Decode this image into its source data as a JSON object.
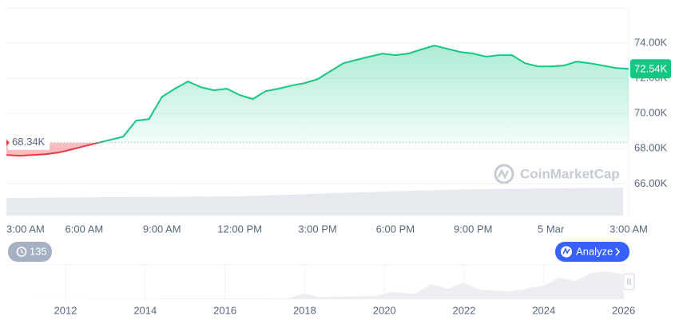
{
  "chart_data": {
    "type": "line",
    "x": [
      0,
      0.5,
      1,
      1.5,
      2,
      2.5,
      3,
      3.5,
      4,
      4.5,
      5,
      5.5,
      6,
      6.5,
      7,
      7.5,
      8,
      8.5,
      9,
      9.5,
      10,
      10.5,
      11,
      11.5,
      12,
      12.5,
      13,
      13.5,
      14,
      14.5,
      15,
      15.5,
      16,
      16.5,
      17,
      17.5,
      18,
      18.5,
      19,
      19.5,
      20,
      20.5,
      21,
      21.5,
      22,
      22.5,
      23,
      23.5,
      24
    ],
    "values": [
      67.64,
      67.59,
      67.64,
      67.68,
      67.77,
      67.95,
      68.14,
      68.32,
      68.5,
      68.68,
      69.59,
      69.68,
      70.95,
      71.41,
      71.82,
      71.5,
      71.32,
      71.41,
      71.05,
      70.82,
      71.27,
      71.41,
      71.59,
      71.73,
      71.95,
      72.41,
      72.86,
      73.05,
      73.23,
      73.41,
      73.32,
      73.41,
      73.64,
      73.86,
      73.68,
      73.5,
      73.41,
      73.23,
      73.32,
      73.32,
      72.86,
      72.68,
      72.68,
      72.73,
      72.95,
      72.86,
      72.73,
      72.59,
      72.54
    ],
    "up_color": "#16c784",
    "down_color": "#ea3943",
    "baseline": 68.34,
    "baseline_label": "68.34K",
    "current_price_label": "72.54K",
    "xlim": [
      0,
      24
    ],
    "xticks": [
      {
        "value": 0,
        "label": "3:00 AM"
      },
      {
        "value": 3,
        "label": "6:00 AM"
      },
      {
        "value": 6,
        "label": "9:00 AM"
      },
      {
        "value": 9,
        "label": "12:00 PM"
      },
      {
        "value": 12,
        "label": "3:00 PM"
      },
      {
        "value": 15,
        "label": "6:00 PM"
      },
      {
        "value": 18,
        "label": "9:00 PM"
      },
      {
        "value": 21,
        "label": "5 Mar"
      },
      {
        "value": 24,
        "label": "3:00 AM"
      }
    ],
    "ylim": [
      64.2,
      76
    ],
    "yticks": [
      {
        "value": 66,
        "label": "66.00K"
      },
      {
        "value": 68,
        "label": "68.00K"
      },
      {
        "value": 70,
        "label": "70.00K"
      },
      {
        "value": 72,
        "label": "72.00K"
      },
      {
        "value": 74,
        "label": "74.00K"
      }
    ],
    "grid": true,
    "watermark": "CoinMarketCap",
    "history_count": "135",
    "analyze_button": "Analyze",
    "navigator_labels": [
      "2012",
      "2014",
      "2016",
      "2018",
      "2020",
      "2022",
      "2024",
      "2026"
    ]
  }
}
